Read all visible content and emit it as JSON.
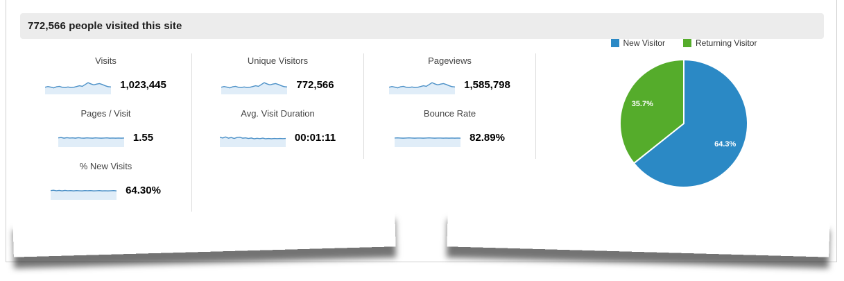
{
  "header": {
    "title": "772,566 people visited this site"
  },
  "spark_style": {
    "line": "#4b90c7",
    "fill": "#e0edf8"
  },
  "metrics": {
    "rows": [
      [
        {
          "label": "Visits",
          "value": "1,023,445",
          "spark": [
            0.42,
            0.47,
            0.43,
            0.38,
            0.45,
            0.48,
            0.42,
            0.4,
            0.44,
            0.4,
            0.42,
            0.47,
            0.52,
            0.48,
            0.6,
            0.72,
            0.64,
            0.58,
            0.63,
            0.66,
            0.6,
            0.52,
            0.46,
            0.44
          ]
        },
        {
          "label": "Unique Visitors",
          "value": "772,566",
          "spark": [
            0.42,
            0.47,
            0.43,
            0.38,
            0.45,
            0.48,
            0.42,
            0.4,
            0.44,
            0.4,
            0.42,
            0.47,
            0.52,
            0.48,
            0.6,
            0.72,
            0.64,
            0.58,
            0.63,
            0.66,
            0.6,
            0.52,
            0.46,
            0.44
          ]
        },
        {
          "label": "Pageviews",
          "value": "1,585,798",
          "spark": [
            0.42,
            0.47,
            0.43,
            0.38,
            0.45,
            0.48,
            0.42,
            0.4,
            0.44,
            0.4,
            0.42,
            0.47,
            0.52,
            0.48,
            0.6,
            0.72,
            0.64,
            0.58,
            0.63,
            0.66,
            0.6,
            0.52,
            0.46,
            0.44
          ]
        }
      ],
      [
        {
          "label": "Pages / Visit",
          "value": "1.55",
          "spark": [
            0.56,
            0.58,
            0.54,
            0.57,
            0.55,
            0.56,
            0.54,
            0.57,
            0.55,
            0.54,
            0.56,
            0.55,
            0.54,
            0.56,
            0.55,
            0.54,
            0.55,
            0.56,
            0.54,
            0.55,
            0.54,
            0.55,
            0.54,
            0.55
          ]
        },
        {
          "label": "Avg. Visit Duration",
          "value": "00:01:11",
          "spark": [
            0.6,
            0.55,
            0.62,
            0.54,
            0.58,
            0.52,
            0.58,
            0.6,
            0.54,
            0.56,
            0.52,
            0.55,
            0.5,
            0.53,
            0.51,
            0.54,
            0.5,
            0.52,
            0.5,
            0.52,
            0.51,
            0.52,
            0.51,
            0.52
          ]
        },
        {
          "label": "Bounce Rate",
          "value": "82.89%",
          "spark": [
            0.55,
            0.56,
            0.55,
            0.54,
            0.55,
            0.56,
            0.55,
            0.54,
            0.55,
            0.55,
            0.54,
            0.55,
            0.56,
            0.55,
            0.54,
            0.55,
            0.55,
            0.54,
            0.55,
            0.54,
            0.55,
            0.54,
            0.55,
            0.54
          ]
        }
      ],
      [
        {
          "label": "% New Visits",
          "value": "64.30%",
          "spark": [
            0.56,
            0.58,
            0.55,
            0.57,
            0.54,
            0.57,
            0.55,
            0.56,
            0.54,
            0.56,
            0.55,
            0.54,
            0.56,
            0.55,
            0.56,
            0.54,
            0.55,
            0.56,
            0.54,
            0.55,
            0.54,
            0.55,
            0.56,
            0.54
          ]
        }
      ]
    ]
  },
  "chart_data": [
    {
      "type": "pie",
      "legend_position": "top",
      "slices": [
        {
          "label": "New Visitor",
          "value": 64.3,
          "display": "64.3%",
          "color": "#2b89c5"
        },
        {
          "label": "Returning Visitor",
          "value": 35.7,
          "display": "35.7%",
          "color": "#55ac2b"
        }
      ]
    },
    {
      "type": "line",
      "note": "unlabeled trend sparklines beside each metric headline",
      "series": [
        {
          "name": "Visits",
          "headline": "1,023,445"
        },
        {
          "name": "Unique Visitors",
          "headline": "772,566"
        },
        {
          "name": "Pageviews",
          "headline": "1,585,798"
        },
        {
          "name": "Pages / Visit",
          "headline": "1.55"
        },
        {
          "name": "Avg. Visit Duration",
          "headline": "00:01:11"
        },
        {
          "name": "Bounce Rate",
          "headline": "82.89%"
        },
        {
          "name": "% New Visits",
          "headline": "64.30%"
        }
      ]
    }
  ]
}
